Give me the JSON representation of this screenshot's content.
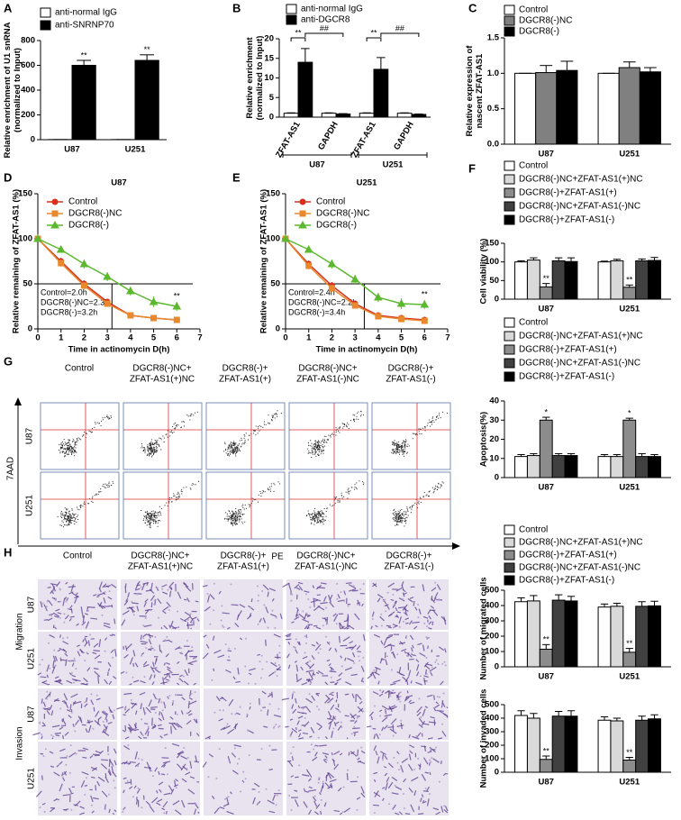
{
  "chart_data": [
    {
      "type": "bar",
      "label": "A",
      "ylabel": [
        "Relative enrichment of U1 snRNA",
        "(normalized to Input)"
      ],
      "categories": [
        "U87",
        "U251"
      ],
      "series": [
        {
          "name": "anti-normal IgG",
          "color": "#ffffff",
          "values": [
            1,
            1
          ],
          "errors": [
            0,
            0
          ]
        },
        {
          "name": "anti-SNRNP70",
          "color": "#000000",
          "values": [
            600,
            640
          ],
          "errors": [
            40,
            45
          ],
          "sig": [
            "**",
            "**"
          ]
        }
      ],
      "ylim": [
        0,
        800
      ],
      "yticks": [
        0,
        200,
        400,
        600,
        800
      ]
    },
    {
      "type": "bar",
      "label": "B",
      "ylabel": [
        "Relative enrichment",
        "(normalized to Input)"
      ],
      "categories": [
        "ZFAT-AS1",
        "GAPDH",
        "ZFAT-AS1",
        "GAPDH"
      ],
      "groups": [
        "U87",
        "U251"
      ],
      "series": [
        {
          "name": "anti-normal IgG",
          "color": "#ffffff",
          "values": [
            1,
            1,
            1,
            1
          ],
          "errors": [
            0.1,
            0.1,
            0.1,
            0.1
          ]
        },
        {
          "name": "anti-DGCR8",
          "color": "#000000",
          "values": [
            14,
            0.8,
            12.2,
            0.7
          ],
          "errors": [
            3.5,
            0.1,
            3,
            0.1
          ]
        }
      ],
      "brackets": [
        "**",
        "##",
        "**",
        "##"
      ],
      "ylim": [
        0,
        20
      ],
      "yticks": [
        0,
        5,
        10,
        15,
        20
      ]
    },
    {
      "type": "bar",
      "label": "C",
      "ylabel": [
        "Relative expression of",
        "nascent ZFAT-AS1"
      ],
      "categories": [
        "U87",
        "U251"
      ],
      "series": [
        {
          "name": "Control",
          "color": "#ffffff",
          "values": [
            1,
            1
          ],
          "errors": [
            0,
            0
          ]
        },
        {
          "name": "DGCR8(-)NC",
          "color": "#808080",
          "values": [
            1.01,
            1.08
          ],
          "errors": [
            0.1,
            0.08
          ]
        },
        {
          "name": "DGCR8(-)",
          "color": "#000000",
          "values": [
            1.04,
            1.02
          ],
          "errors": [
            0.13,
            0.06
          ]
        }
      ],
      "ylim": [
        0,
        1.5
      ],
      "yticks": [
        {
          "value": 0,
          "label": "0.0"
        },
        0.5,
        {
          "value": 1,
          "label": "1.0"
        },
        1.5
      ]
    },
    {
      "type": "line",
      "label": "D",
      "title": "U87",
      "ylabel": [
        "Relative remaining of ZFAT-AS1 (%)"
      ],
      "xlabel": "Time in actinomycin D(h)",
      "x": [
        0,
        1,
        2,
        3,
        4,
        5,
        6
      ],
      "series": [
        {
          "name": "Control",
          "color": "#d7301f",
          "marker": "circle",
          "values": [
            100,
            75,
            50,
            30,
            15,
            12,
            10
          ],
          "errors": [
            0,
            4,
            4,
            3,
            2,
            2,
            2
          ]
        },
        {
          "name": "DGCR8(-)NC",
          "color": "#e8892e",
          "marker": "square",
          "values": [
            100,
            73,
            48,
            28,
            15,
            12,
            10
          ],
          "errors": [
            0,
            4,
            4,
            3,
            2,
            2,
            2
          ]
        },
        {
          "name": "DGCR8(-)",
          "color": "#5cb82e",
          "marker": "triangle",
          "values": [
            100,
            88,
            72,
            58,
            42,
            30,
            25
          ],
          "errors": [
            0,
            3,
            5,
            5,
            5,
            6,
            5
          ],
          "sig": [
            null,
            null,
            null,
            null,
            null,
            null,
            "**"
          ]
        }
      ],
      "box": [
        "Control=2.0h",
        "DGCR8(-)NC=2.3h",
        "DGCR8(-)=3.2h"
      ],
      "ref_y": 50,
      "ref_x": 3.2,
      "xlim": [
        0,
        7
      ],
      "xticks": [
        0,
        1,
        2,
        3,
        4,
        5,
        6,
        7
      ],
      "ylim": [
        0,
        150
      ],
      "yticks": [
        0,
        50,
        100,
        150
      ]
    },
    {
      "type": "line",
      "label": "E",
      "title": "U251",
      "ylabel": [
        "Relative remaining of ZFAT-AS1 (%)"
      ],
      "xlabel": "Time in actinomycin D(h)",
      "x": [
        0,
        1,
        2,
        3,
        4,
        5,
        6
      ],
      "series": [
        {
          "name": "Control",
          "color": "#d7301f",
          "marker": "circle",
          "values": [
            100,
            72,
            48,
            28,
            15,
            12,
            10
          ],
          "errors": [
            0,
            4,
            4,
            3,
            2,
            2,
            2
          ]
        },
        {
          "name": "DGCR8(-)NC",
          "color": "#e8892e",
          "marker": "square",
          "values": [
            100,
            70,
            45,
            26,
            14,
            11,
            9
          ],
          "errors": [
            0,
            4,
            4,
            3,
            2,
            2,
            2
          ]
        },
        {
          "name": "DGCR8(-)",
          "color": "#5cb82e",
          "marker": "triangle",
          "values": [
            100,
            88,
            72,
            55,
            35,
            28,
            27
          ],
          "errors": [
            0,
            3,
            5,
            5,
            5,
            6,
            5
          ],
          "sig": [
            null,
            null,
            null,
            null,
            null,
            null,
            "**"
          ]
        }
      ],
      "box": [
        "Control=2.4h",
        "DGCR8(-)NC=2.2h",
        "DGCR8(-)=3.4h"
      ],
      "ref_y": 50,
      "ref_x": 3.4,
      "xlim": [
        0,
        7
      ],
      "xticks": [
        0,
        1,
        2,
        3,
        4,
        5,
        6,
        7
      ],
      "ylim": [
        0,
        150
      ],
      "yticks": [
        0,
        50,
        100,
        150
      ]
    },
    {
      "type": "bar",
      "label": "F",
      "ylabel": [
        "Cell viability (%)"
      ],
      "categories": [
        "U87",
        "U251"
      ],
      "series": [
        {
          "name": "Control",
          "color": "#ffffff",
          "values": [
            100,
            100
          ],
          "errors": [
            3,
            2
          ]
        },
        {
          "name": "DGCR8(-)NC+ZFAT-AS1(+)NC",
          "color": "#d9d9d9",
          "values": [
            105,
            103
          ],
          "errors": [
            6,
            4
          ]
        },
        {
          "name": "DGCR8(-)+ZFAT-AS1(+)",
          "color": "#8c8c8c",
          "values": [
            33,
            32
          ],
          "errors": [
            9,
            6
          ],
          "sig": [
            "**",
            "**"
          ]
        },
        {
          "name": "DGCR8(-)NC+ZFAT-AS1(-)NC",
          "color": "#404040",
          "values": [
            103,
            103
          ],
          "errors": [
            8,
            5
          ]
        },
        {
          "name": "DGCR8(-)+ZFAT-AS1(-)",
          "color": "#000000",
          "values": [
            101,
            104
          ],
          "errors": [
            10,
            8
          ]
        }
      ],
      "ylim": [
        0,
        150
      ],
      "yticks": [
        0,
        50,
        100,
        150
      ]
    },
    {
      "type": "bar",
      "ylabel": [
        "Apoptosis(%)"
      ],
      "categories": [
        "U87",
        "U251"
      ],
      "series": [
        {
          "name": "Control",
          "color": "#ffffff",
          "values": [
            11,
            11
          ],
          "errors": [
            1,
            1
          ]
        },
        {
          "name": "DGCR8(-)NC+ZFAT-AS1(+)NC",
          "color": "#d9d9d9",
          "values": [
            11.5,
            11
          ],
          "errors": [
            1,
            1
          ]
        },
        {
          "name": "DGCR8(-)+ZFAT-AS1(+)",
          "color": "#8c8c8c",
          "values": [
            30,
            30
          ],
          "errors": [
            1.5,
            1
          ],
          "sig": [
            "*",
            "*"
          ]
        },
        {
          "name": "DGCR8(-)NC+ZFAT-AS1(-)NC",
          "color": "#404040",
          "values": [
            11.5,
            11
          ],
          "errors": [
            1,
            1.5
          ]
        },
        {
          "name": "DGCR8(-)+ZFAT-AS1(-)",
          "color": "#000000",
          "values": [
            11.5,
            11
          ],
          "errors": [
            1,
            1
          ]
        }
      ],
      "ylim": [
        0,
        40
      ],
      "yticks": [
        0,
        10,
        20,
        30,
        40
      ]
    },
    {
      "type": "bar",
      "ylabel": [
        "Number of migrated cells"
      ],
      "categories": [
        "U87",
        "U251"
      ],
      "series": [
        {
          "name": "Control",
          "color": "#ffffff",
          "values": [
            425,
            390
          ],
          "errors": [
            25,
            20
          ]
        },
        {
          "name": "DGCR8(-)NC+ZFAT-AS1(+)NC",
          "color": "#d9d9d9",
          "values": [
            430,
            395
          ],
          "errors": [
            35,
            20
          ]
        },
        {
          "name": "DGCR8(-)+ZFAT-AS1(+)",
          "color": "#8c8c8c",
          "values": [
            115,
            95
          ],
          "errors": [
            30,
            25
          ],
          "sig": [
            "**",
            "**"
          ]
        },
        {
          "name": "DGCR8(-)NC+ZFAT-AS1(-)NC",
          "color": "#404040",
          "values": [
            435,
            395
          ],
          "errors": [
            35,
            30
          ]
        },
        {
          "name": "DGCR8(-)+ZFAT-AS1(-)",
          "color": "#000000",
          "values": [
            430,
            398
          ],
          "errors": [
            30,
            30
          ]
        }
      ],
      "ylim": [
        0,
        500
      ],
      "yticks": [
        0,
        100,
        200,
        300,
        400,
        500
      ]
    },
    {
      "type": "bar",
      "ylabel": [
        "Number of invaded cells"
      ],
      "categories": [
        "U87",
        "U251"
      ],
      "series": [
        {
          "color": "#ffffff",
          "values": [
            420,
            385
          ],
          "errors": [
            35,
            25
          ]
        },
        {
          "color": "#d9d9d9",
          "values": [
            400,
            380
          ],
          "errors": [
            35,
            20
          ]
        },
        {
          "color": "#8c8c8c",
          "values": [
            95,
            90
          ],
          "errors": [
            25,
            20
          ],
          "sig": [
            "**",
            "**"
          ]
        },
        {
          "color": "#404040",
          "values": [
            415,
            385
          ],
          "errors": [
            35,
            30
          ]
        },
        {
          "color": "#000000",
          "values": [
            415,
            395
          ],
          "errors": [
            40,
            30
          ]
        }
      ],
      "ylim": [
        0,
        500
      ],
      "yticks": [
        0,
        100,
        200,
        300,
        400,
        500
      ]
    }
  ],
  "figure": {
    "G": {
      "label": "G",
      "columns": [
        [
          "Control"
        ],
        [
          "DGCR8(-)NC+",
          "ZFAT-AS1(+)NC"
        ],
        [
          "DGCR8(-)+",
          "ZFAT-AS1(+)"
        ],
        [
          "DGCR8(-)NC+",
          "ZFAT-AS1(-)NC"
        ],
        [
          "DGCR8(-)+",
          "ZFAT-AS1(-)"
        ]
      ],
      "rows": [
        "U87",
        "U251"
      ],
      "ylabel": "7AAD",
      "xlabel": "PE"
    },
    "H": {
      "label": "H",
      "columns": [
        [
          "Control"
        ],
        [
          "DGCR8(-)NC+",
          "ZFAT-AS1(+)NC"
        ],
        [
          "DGCR8(-)+",
          "ZFAT-AS1(+)"
        ],
        [
          "DGCR8(-)NC+",
          "ZFAT-AS1(-)NC"
        ],
        [
          "DGCR8(-)+",
          "ZFAT-AS1(-)"
        ]
      ],
      "groups": [
        "Migration",
        "Invasion"
      ],
      "rows": [
        "U87",
        "U251",
        "U87",
        "U251"
      ]
    }
  }
}
